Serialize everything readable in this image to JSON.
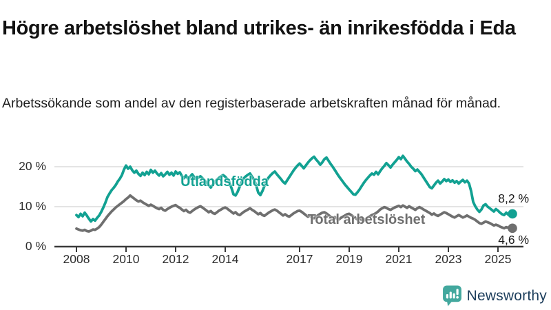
{
  "header": {
    "title": "Högre arbetslöshet bland utrikes- än inrikesfödda i Eda",
    "subtitle": "Arbetssökande som andel av den registerbaserade arbetskraften månad för månad."
  },
  "footer": {
    "brand": "Newsworthy"
  },
  "colors": {
    "series_foreign_born": "#12a192",
    "series_total": "#6f6f6f",
    "gridline": "#dcdcdc",
    "axis": "#3a3a3a",
    "logo_teal": "#43a89e",
    "logo_text": "#1d3e5c"
  },
  "chart_data": {
    "type": "line",
    "title": "Högre arbetslöshet bland utrikes- än inrikesfödda i Eda",
    "subtitle": "Arbetssökande som andel av den registerbaserade arbetskraften månad för månad.",
    "x_unit": "year-month",
    "x_start_year": 2008,
    "x_step_months": 1,
    "x_end": "2025-08",
    "xlim": [
      2007.1,
      2026.05
    ],
    "ylim": [
      0,
      24
    ],
    "grid": "horizontal",
    "legend_position": "inline-labels",
    "x_ticks": [
      2008,
      2010,
      2012,
      2014,
      2017,
      2019,
      2021,
      2023,
      2025
    ],
    "y_ticks": [
      {
        "value": 0,
        "label": "0 %"
      },
      {
        "value": 10,
        "label": "10 %"
      },
      {
        "value": 20,
        "label": "20 %"
      }
    ],
    "series": [
      {
        "name": "Utlandsfödda",
        "color": "#12a192",
        "end_label": "8,2 %",
        "end_value": 8.2,
        "values": [
          7.9,
          7.4,
          8.2,
          7.6,
          8.5,
          7.8,
          7.0,
          6.3,
          6.9,
          6.5,
          7.2,
          7.8,
          8.7,
          9.8,
          11.0,
          12.4,
          13.3,
          14.1,
          14.7,
          15.4,
          16.3,
          17.0,
          17.9,
          19.3,
          20.3,
          19.5,
          20.0,
          19.1,
          18.5,
          19.0,
          18.2,
          17.7,
          18.5,
          17.9,
          18.7,
          18.1,
          19.2,
          18.5,
          19.0,
          18.3,
          17.8,
          18.4,
          17.6,
          18.1,
          18.7,
          18.0,
          18.5,
          17.8,
          18.8,
          18.2,
          18.6,
          17.7,
          17.1,
          17.8,
          17.0,
          17.5,
          18.1,
          17.4,
          16.9,
          17.3,
          17.6,
          17.1,
          16.6,
          16.0,
          15.4,
          14.8,
          15.5,
          16.2,
          16.8,
          17.2,
          17.6,
          17.9,
          17.5,
          16.9,
          16.1,
          14.7,
          13.1,
          12.8,
          13.7,
          15.0,
          16.3,
          17.1,
          17.6,
          18.0,
          18.3,
          17.5,
          16.7,
          15.3,
          13.5,
          12.9,
          13.9,
          15.2,
          16.5,
          17.3,
          17.9,
          18.4,
          18.8,
          18.1,
          17.5,
          16.9,
          16.2,
          15.8,
          16.6,
          17.4,
          18.2,
          19.0,
          19.7,
          20.3,
          20.8,
          20.2,
          19.6,
          20.3,
          21.0,
          21.6,
          22.1,
          22.5,
          21.8,
          21.2,
          20.5,
          21.1,
          21.9,
          22.3,
          21.5,
          20.7,
          20.0,
          19.2,
          18.4,
          17.6,
          16.9,
          16.2,
          15.5,
          14.9,
          14.3,
          13.7,
          13.1,
          13.0,
          13.6,
          14.3,
          15.1,
          15.9,
          16.6,
          17.2,
          17.8,
          18.3,
          18.0,
          18.7,
          18.1,
          18.9,
          19.6,
          20.2,
          20.9,
          20.4,
          19.8,
          20.5,
          21.1,
          21.7,
          22.4,
          21.9,
          22.7,
          22.0,
          21.3,
          20.7,
          20.0,
          19.5,
          18.9,
          19.3,
          18.7,
          18.1,
          17.3,
          16.5,
          15.7,
          14.9,
          14.6,
          15.3,
          16.0,
          16.5,
          15.8,
          16.3,
          16.9,
          16.4,
          16.8,
          16.2,
          16.6,
          16.0,
          16.4,
          15.8,
          16.3,
          16.7,
          16.1,
          16.5,
          15.8,
          13.9,
          11.2,
          10.1,
          9.3,
          8.7,
          9.3,
          10.3,
          10.6,
          10.0,
          9.6,
          9.2,
          8.8,
          9.4,
          9.0,
          8.5,
          8.1,
          7.9,
          8.5,
          8.0,
          8.6,
          8.2
        ]
      },
      {
        "name": "Total arbetslöshet",
        "color": "#6f6f6f",
        "end_label": "4,6 %",
        "end_value": 4.6,
        "values": [
          4.5,
          4.3,
          4.1,
          4.0,
          4.2,
          3.9,
          3.8,
          4.0,
          4.3,
          4.2,
          4.5,
          4.9,
          5.5,
          6.2,
          6.9,
          7.6,
          8.2,
          8.8,
          9.3,
          9.8,
          10.2,
          10.6,
          11.0,
          11.4,
          11.9,
          12.3,
          12.8,
          12.4,
          12.0,
          11.6,
          11.3,
          11.5,
          11.1,
          10.8,
          10.5,
          10.2,
          10.5,
          10.2,
          9.9,
          9.6,
          9.4,
          9.7,
          9.2,
          9.0,
          9.4,
          9.7,
          10.0,
          10.2,
          10.4,
          10.0,
          9.7,
          9.3,
          8.9,
          9.2,
          8.7,
          8.5,
          8.9,
          9.3,
          9.6,
          9.9,
          10.1,
          9.8,
          9.4,
          9.0,
          8.6,
          8.9,
          8.4,
          8.2,
          8.6,
          9.0,
          9.3,
          9.6,
          9.8,
          9.5,
          9.1,
          8.7,
          8.3,
          8.6,
          8.1,
          7.9,
          8.3,
          8.7,
          9.0,
          9.3,
          9.6,
          9.2,
          8.9,
          8.5,
          8.1,
          8.4,
          7.9,
          7.7,
          8.1,
          8.5,
          8.8,
          9.1,
          9.3,
          9.0,
          8.6,
          8.2,
          7.8,
          8.1,
          7.7,
          7.5,
          7.9,
          8.3,
          8.6,
          8.9,
          9.0,
          8.7,
          8.3,
          7.9,
          7.5,
          7.8,
          7.3,
          7.1,
          7.5,
          7.9,
          8.2,
          8.5,
          8.6,
          8.3,
          7.9,
          7.5,
          7.1,
          7.4,
          7.0,
          6.8,
          7.2,
          7.5,
          7.8,
          8.1,
          8.2,
          7.9,
          7.5,
          7.2,
          6.8,
          7.1,
          6.7,
          6.5,
          6.9,
          7.3,
          7.6,
          7.9,
          8.1,
          8.4,
          8.8,
          9.3,
          9.6,
          9.9,
          9.7,
          9.4,
          9.2,
          9.5,
          9.8,
          10.0,
          10.2,
          9.9,
          10.3,
          10.0,
          9.7,
          10.1,
          9.8,
          9.5,
          9.2,
          9.6,
          9.9,
          9.6,
          9.3,
          9.0,
          8.7,
          8.4,
          8.0,
          8.3,
          7.9,
          7.7,
          8.0,
          8.3,
          8.6,
          8.4,
          8.1,
          7.8,
          7.5,
          7.3,
          7.6,
          7.9,
          7.6,
          7.3,
          7.5,
          7.8,
          7.5,
          7.2,
          7.0,
          6.7,
          6.3,
          5.9,
          5.7,
          6.0,
          6.3,
          6.1,
          5.9,
          5.6,
          5.3,
          5.5,
          5.3,
          5.0,
          4.8,
          4.6,
          4.9,
          4.7,
          4.8,
          4.6
        ]
      }
    ]
  }
}
